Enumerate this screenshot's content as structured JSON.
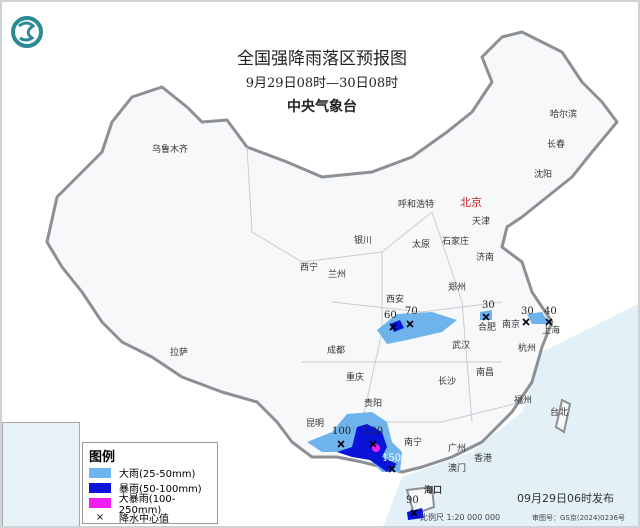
{
  "header": {
    "title": "全国强降雨落区预报图",
    "period": "9月29日08时—30日08时",
    "issuer": "中央气象台",
    "logo": "cma-logo"
  },
  "cities": [
    {
      "name": "乌鲁木齐"
    },
    {
      "name": "哈尔滨"
    },
    {
      "name": "长春"
    },
    {
      "name": "沈阳"
    },
    {
      "name": "北京"
    },
    {
      "name": "天津"
    },
    {
      "name": "呼和浩特"
    },
    {
      "name": "石家庄"
    },
    {
      "name": "太原"
    },
    {
      "name": "银川"
    },
    {
      "name": "济南"
    },
    {
      "name": "西宁"
    },
    {
      "name": "兰州"
    },
    {
      "name": "郑州"
    },
    {
      "name": "西安"
    },
    {
      "name": "合肥"
    },
    {
      "name": "南京"
    },
    {
      "name": "上海"
    },
    {
      "name": "拉萨"
    },
    {
      "name": "成都"
    },
    {
      "name": "武汉"
    },
    {
      "name": "杭州"
    },
    {
      "name": "重庆"
    },
    {
      "name": "长沙"
    },
    {
      "name": "南昌"
    },
    {
      "name": "贵阳"
    },
    {
      "name": "福州"
    },
    {
      "name": "台北"
    },
    {
      "name": "昆明"
    },
    {
      "name": "南宁"
    },
    {
      "name": "广州"
    },
    {
      "name": "香港"
    },
    {
      "name": "澳门"
    },
    {
      "name": "海口"
    }
  ],
  "rain_centers": [
    "60",
    "70",
    "30",
    "30",
    "40",
    "100",
    "120",
    "150",
    "90"
  ],
  "legend": {
    "title": "图例",
    "items": [
      {
        "label": "大雨(25-50mm)",
        "color": "#6fb3ec"
      },
      {
        "label": "暴雨(50-100mm)",
        "color": "#0a14d8"
      },
      {
        "label": "大暴雨(100-250mm)",
        "color": "#f01ef0"
      },
      {
        "label": "降水中心值",
        "symbol": "×"
      }
    ]
  },
  "footer": {
    "issued": "09月29日06时发布",
    "scale": "比例尺 1:20 000 000",
    "map_number": "审图号：GS京(2024)0236号"
  }
}
